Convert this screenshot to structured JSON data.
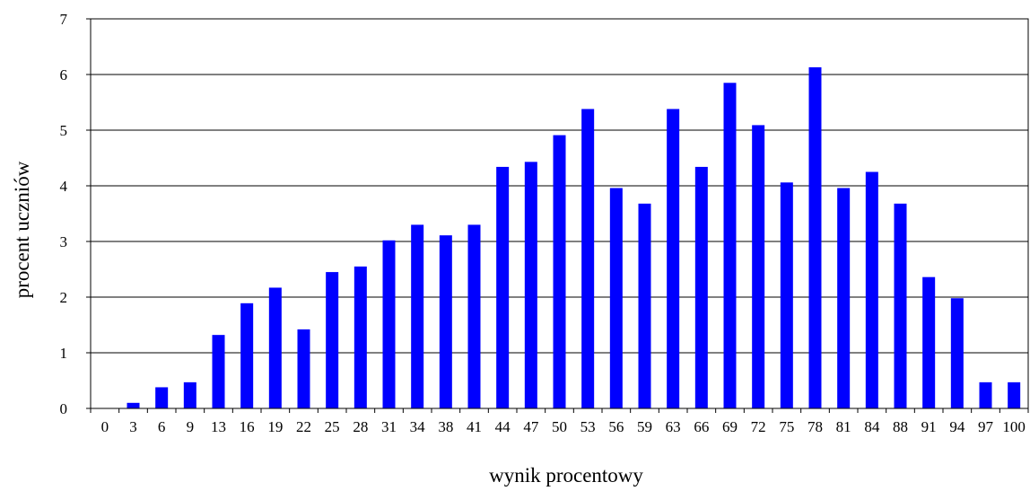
{
  "chart_data": {
    "type": "bar",
    "title": "",
    "xlabel": "wynik procentowy",
    "ylabel": "procent uczniów",
    "categories": [
      "0",
      "3",
      "6",
      "9",
      "13",
      "16",
      "19",
      "22",
      "25",
      "28",
      "31",
      "34",
      "38",
      "41",
      "44",
      "47",
      "50",
      "53",
      "56",
      "59",
      "63",
      "66",
      "69",
      "72",
      "75",
      "78",
      "81",
      "84",
      "88",
      "91",
      "94",
      "97",
      "100"
    ],
    "values": [
      0,
      0.1,
      0.38,
      0.47,
      1.32,
      1.89,
      2.17,
      1.42,
      2.45,
      2.55,
      3.02,
      3.3,
      3.11,
      3.3,
      4.34,
      4.43,
      4.91,
      5.38,
      3.96,
      3.68,
      5.38,
      4.34,
      5.85,
      5.09,
      4.06,
      6.13,
      3.96,
      4.25,
      3.68,
      2.36,
      1.98,
      0.47,
      0.47
    ],
    "ylim": [
      0,
      7
    ],
    "yticks": [
      "0",
      "1",
      "2",
      "3",
      "4",
      "5",
      "6",
      "7"
    ],
    "grid": true,
    "bar_color": "#0000ff",
    "grid_color": "#000000",
    "axis_color": "#000000"
  }
}
